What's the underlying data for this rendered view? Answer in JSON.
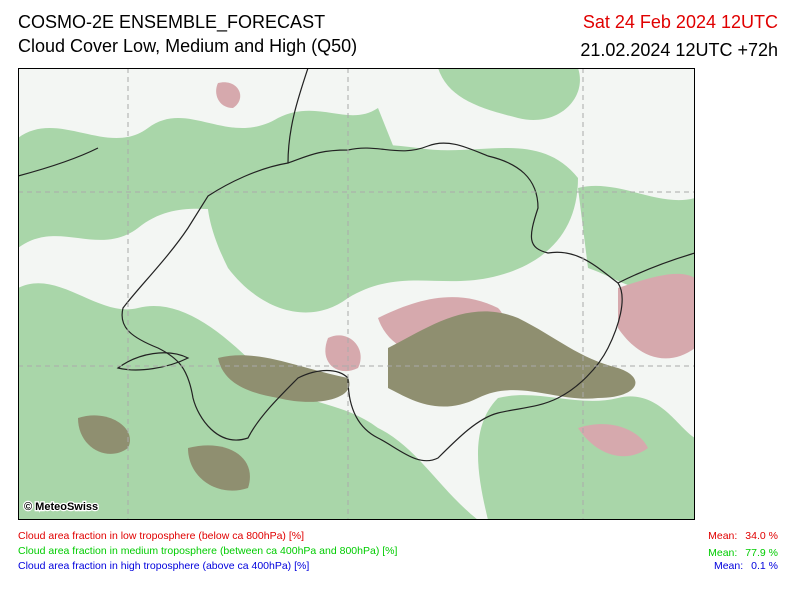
{
  "header": {
    "title": "COSMO-2E ENSEMBLE_FORECAST",
    "subtitle": "Cloud Cover Low, Medium and High (Q50)",
    "valid_time": "Sat 24 Feb 2024 12UTC",
    "run_time": "21.02.2024 12UTC +72h"
  },
  "map": {
    "credit": "© MeteoSwiss"
  },
  "legend": {
    "items": [
      {
        "label": "Cloud area fraction in low troposphere (below ca 800hPa) [%]",
        "mean_label": "Mean:",
        "mean": "34.0 %"
      },
      {
        "label": "Cloud area fraction in medium troposphere (between ca 400hPa and 800hPa) [%]",
        "mean_label": "Mean:",
        "mean": "77.9 %"
      },
      {
        "label": "Cloud area fraction in high troposphere (above ca 400hPa) [%]",
        "mean_label": "Mean:",
        "mean": "0.1 %"
      }
    ]
  }
}
